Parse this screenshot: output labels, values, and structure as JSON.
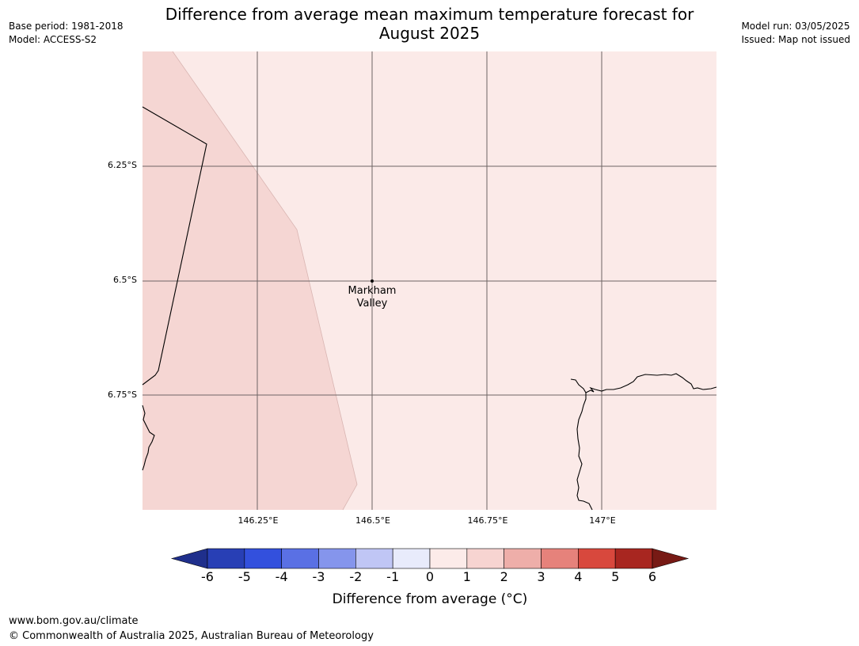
{
  "header": {
    "base_period": "Base period: 1981-2018",
    "model": "Model: ACCESS-S2",
    "model_run": "Model run: 03/05/2025",
    "issued": "Issued: Map not issued",
    "title_line1": "Difference from average mean maximum temperature forecast for",
    "title_line2": "August 2025"
  },
  "map": {
    "lat_labels": [
      "6.25°S",
      "6.5°S",
      "6.75°S"
    ],
    "lon_labels": [
      "146.25°E",
      "146.5°E",
      "146.75°E",
      "147°E"
    ],
    "place": {
      "line1": "Markham",
      "line2": "Valley"
    },
    "colors": {
      "region_0_1": "#fbeae8",
      "region_1_2": "#f5d6d3",
      "grid": "#6e6464",
      "coast": "#000000"
    }
  },
  "legend": {
    "label": "Difference from average (°C)",
    "ticks": [
      "-6",
      "-5",
      "-4",
      "-3",
      "-2",
      "-1",
      "0",
      "1",
      "2",
      "3",
      "4",
      "5",
      "6"
    ],
    "colors": [
      "#1f2f8c",
      "#283fb5",
      "#3350dd",
      "#5a70e4",
      "#8595ec",
      "#c0c6f5",
      "#e8ebfb",
      "#fcebe9",
      "#f7d4d1",
      "#eeaea9",
      "#e6827b",
      "#d8483d",
      "#a82620",
      "#771a15"
    ]
  },
  "footer": {
    "url": "www.bom.gov.au/climate",
    "copyright": "© Commonwealth of Australia 2025, Australian Bureau of Meteorology"
  }
}
